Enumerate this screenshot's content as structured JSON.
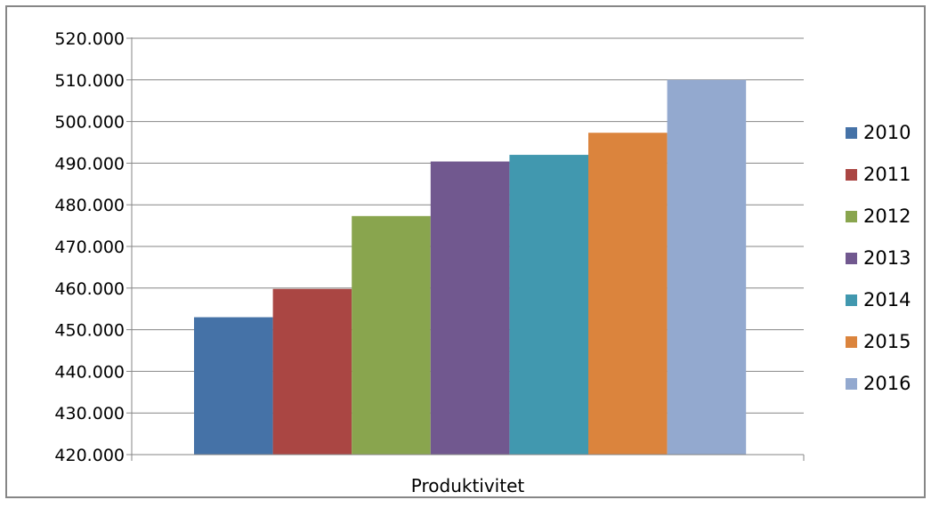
{
  "chart_data": {
    "type": "bar",
    "categories": [
      "Produktivitet"
    ],
    "series": [
      {
        "name": "2010",
        "color": "#4572A7",
        "values": [
          453000
        ]
      },
      {
        "name": "2011",
        "color": "#AA4643",
        "values": [
          459800
        ]
      },
      {
        "name": "2012",
        "color": "#89A54E",
        "values": [
          477300
        ]
      },
      {
        "name": "2013",
        "color": "#71588F",
        "values": [
          490400
        ]
      },
      {
        "name": "2014",
        "color": "#4198AF",
        "values": [
          492000
        ]
      },
      {
        "name": "2015",
        "color": "#DB843D",
        "values": [
          497300
        ]
      },
      {
        "name": "2016",
        "color": "#93A9CF",
        "values": [
          510000
        ]
      }
    ],
    "ylim": [
      420000,
      520000
    ],
    "yticks": [
      "420.000",
      "430.000",
      "440.000",
      "450.000",
      "460.000",
      "470.000",
      "480.000",
      "490.000",
      "500.000",
      "510.000",
      "520.000"
    ],
    "grid": true,
    "legend": "right",
    "title": "",
    "xlabel": "",
    "ylabel": ""
  }
}
